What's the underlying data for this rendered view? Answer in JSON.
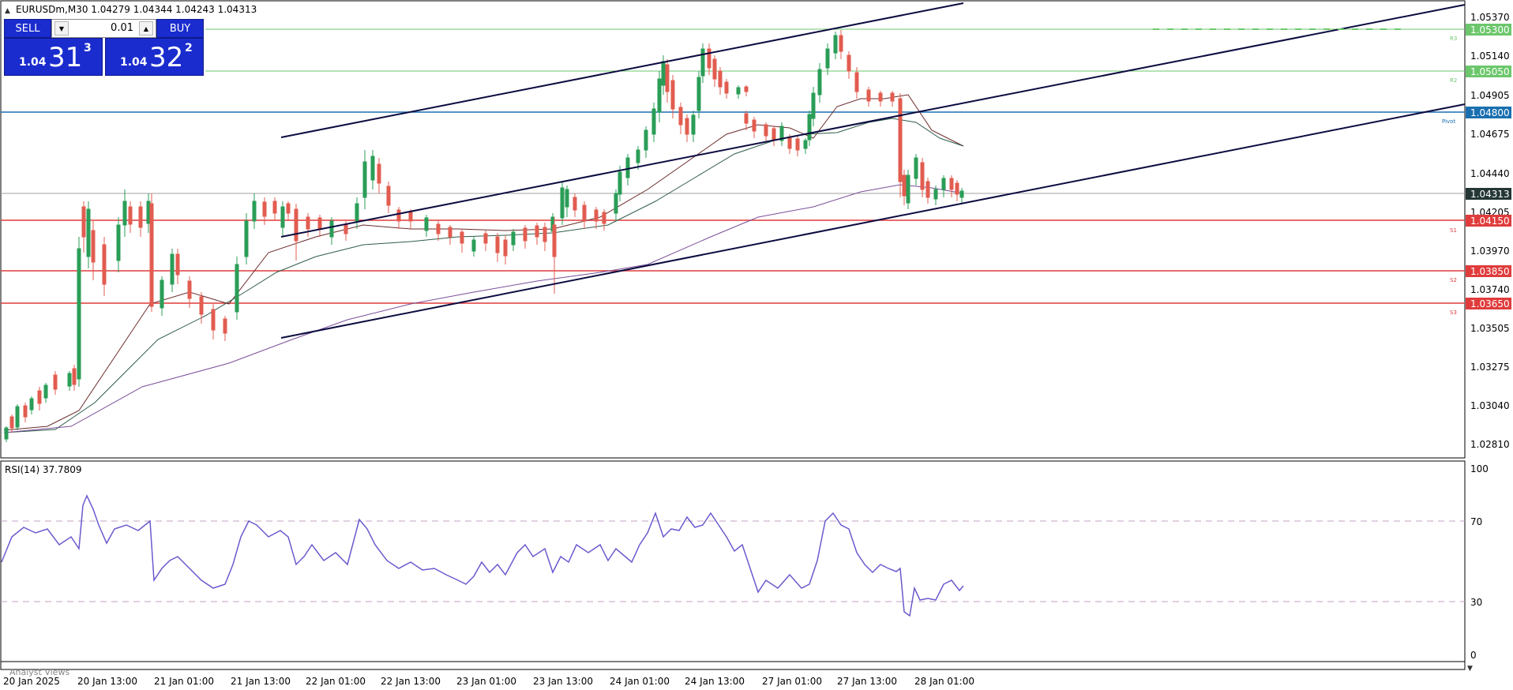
{
  "chart": {
    "header": "EURUSDm,M30  1.04279 1.04344 1.04243 1.04313"
  },
  "trade_panel": {
    "sell_label": "SELL",
    "buy_label": "BUY",
    "lot": "0.01",
    "sell_price_small": "1.04",
    "sell_price_big": "31",
    "sell_price_sup": "3",
    "buy_price_small": "1.04",
    "buy_price_big": "32",
    "buy_price_sup": "2"
  },
  "price_scale": {
    "ticks": [
      "1.05370",
      "1.05140",
      "1.04905",
      "1.04675",
      "1.04440",
      "1.04205",
      "1.03970",
      "1.03740",
      "1.03505",
      "1.03275",
      "1.03040",
      "1.02810"
    ],
    "current_price": "1.04313"
  },
  "levels": [
    {
      "price": "1.05300",
      "tag": "R3",
      "color": "#6cc76c"
    },
    {
      "price": "1.05050",
      "tag": "R2",
      "color": "#6cc76c"
    },
    {
      "price": "1.04800",
      "tag": "Pivot",
      "color": "#1a6fb0"
    },
    {
      "price": "1.04150",
      "tag": "S1",
      "color": "#e03c3c"
    },
    {
      "price": "1.03850",
      "tag": "S2",
      "color": "#e03c3c"
    },
    {
      "price": "1.03650",
      "tag": "S3",
      "color": "#e03c3c"
    }
  ],
  "rsi": {
    "label": "RSI(14) 37.7809",
    "ticks": [
      "100",
      "70",
      "30",
      "0"
    ]
  },
  "time_axis": [
    "20 Jan 2025",
    "20 Jan 13:00",
    "21 Jan 01:00",
    "21 Jan 13:00",
    "22 Jan 01:00",
    "22 Jan 13:00",
    "23 Jan 01:00",
    "23 Jan 13:00",
    "24 Jan 01:00",
    "24 Jan 13:00",
    "27 Jan 01:00",
    "27 Jan 13:00",
    "28 Jan 01:00"
  ],
  "analyst_tab": "Analyst Views",
  "colors": {
    "bull": "#2a9d57",
    "bear": "#e25c50",
    "rsi": "#6a5acd"
  }
}
